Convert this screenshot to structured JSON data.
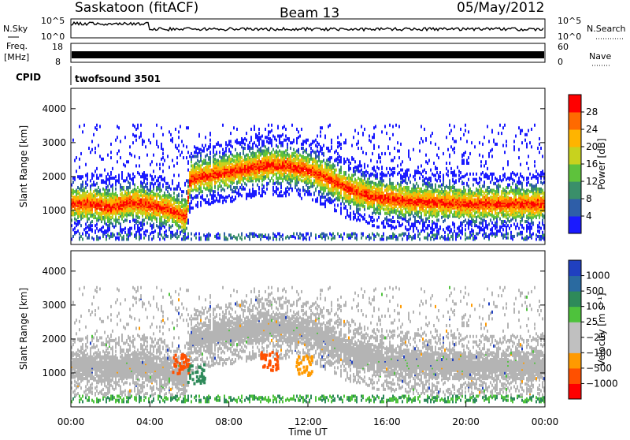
{
  "header": {
    "station": "Saskatoon (fitACF)",
    "beam": "Beam 13",
    "date": "05/May/2012"
  },
  "status_panels": {
    "nsky_label": "N.Sky",
    "nsearch_label": "N.Search",
    "noise_ticks": [
      "10^5",
      "10^0"
    ],
    "freq_label_line1": "Freq.",
    "freq_label_line2": "[MHz]",
    "freq_ticks": [
      "18",
      "8"
    ],
    "nave_label": "Nave",
    "nave_ticks": [
      "60",
      "0"
    ],
    "cpid_label": "CPID",
    "cpid_value": "twofsound 3501"
  },
  "chart_data": [
    {
      "type": "heatmap",
      "name": "power",
      "ylabel": "Slant Range [km]",
      "xlabel": "",
      "x_ticks": [
        "00:00",
        "04:00",
        "08:00",
        "12:00",
        "16:00",
        "20:00",
        "00:00"
      ],
      "xlim_hours": [
        0,
        24
      ],
      "ylim_km": [
        0,
        4600
      ],
      "y_ticks": [
        1000,
        2000,
        3000,
        4000
      ],
      "colorbar": {
        "label": "Power [dB]",
        "range": [
          0,
          30
        ],
        "ticks": [
          "4",
          "8",
          "12",
          "16",
          "20",
          "24",
          "28"
        ],
        "colors": [
          "#1a1aff",
          "#2e5ea8",
          "#3a8f6a",
          "#5ec23c",
          "#c8d21e",
          "#ffb400",
          "#ff6a00",
          "#ff0000"
        ]
      },
      "echo_bands": [
        {
          "t_hours": [
            0,
            1,
            2,
            3,
            4,
            5,
            5.8,
            6,
            8,
            10,
            11,
            12,
            13,
            14,
            15,
            16,
            18,
            20,
            22,
            24
          ],
          "range_km": [
            1250,
            1250,
            1150,
            1300,
            1200,
            1100,
            850,
            2000,
            2200,
            2400,
            2350,
            2250,
            2000,
            1700,
            1500,
            1400,
            1300,
            1250,
            1250,
            1250
          ],
          "peak_db": 28
        }
      ]
    },
    {
      "type": "heatmap",
      "name": "velocity",
      "ylabel": "Slant Range [km]",
      "xlabel": "Time UT",
      "x_ticks": [
        "00:00",
        "04:00",
        "08:00",
        "12:00",
        "16:00",
        "20:00",
        "00:00"
      ],
      "xlim_hours": [
        0,
        24
      ],
      "ylim_km": [
        0,
        4600
      ],
      "y_ticks": [
        1000,
        2000,
        3000,
        4000
      ],
      "colorbar": {
        "label": "Velocity [m s⁻¹]",
        "ticks": [
          "1000",
          "500",
          "100",
          "25",
          "−25",
          "−100",
          "−500",
          "−1000"
        ],
        "colors": [
          "#2040c0",
          "#2a6aa0",
          "#2e8a5a",
          "#4ec23c",
          "#c0c0c0",
          "#c0c0c0",
          "#ff9a00",
          "#ff5000",
          "#ff0000"
        ]
      },
      "ground_scatter_color": "#b4b4b4",
      "notable_features": [
        {
          "t_hours": 5.5,
          "range_km": 1300,
          "velocity": "-500"
        },
        {
          "t_hours": 6.3,
          "range_km": 1000,
          "velocity": "100"
        },
        {
          "t_hours": 10,
          "range_km": 1400,
          "velocity": "-500"
        },
        {
          "t_hours": 11.8,
          "range_km": 1250,
          "velocity": "-100"
        }
      ]
    }
  ]
}
